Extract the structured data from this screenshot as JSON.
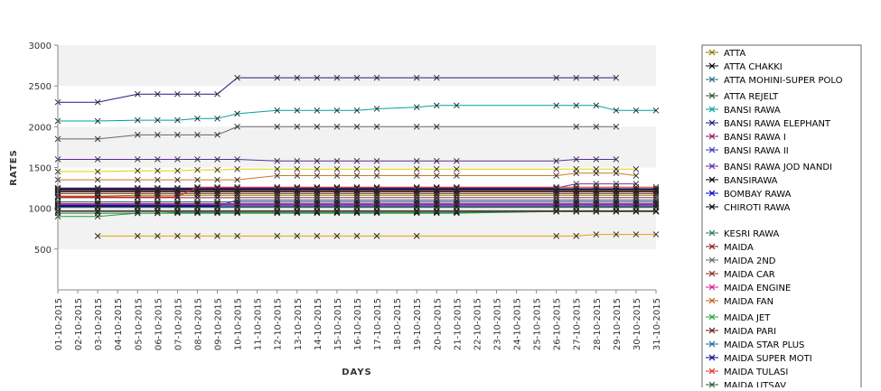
{
  "chart_data": {
    "type": "line",
    "title": "",
    "xlabel": "DAYS",
    "ylabel": "RATES",
    "ylim": [
      0,
      3000
    ],
    "y_ticks": [
      500,
      1000,
      1500,
      2000,
      2500,
      3000
    ],
    "grid": "alternating horizontal bands",
    "legend_position": "right",
    "categories": [
      "01-10-2015",
      "02-10-2015",
      "03-10-2015",
      "04-10-2015",
      "05-10-2015",
      "06-10-2015",
      "07-10-2015",
      "08-10-2015",
      "09-10-2015",
      "10-10-2015",
      "11-10-2015",
      "12-10-2015",
      "13-10-2015",
      "14-10-2015",
      "15-10-2015",
      "16-10-2015",
      "17-10-2015",
      "18-10-2015",
      "19-10-2015",
      "20-10-2015",
      "21-10-2015",
      "22-10-2015",
      "23-10-2015",
      "24-10-2015",
      "25-10-2015",
      "26-10-2015",
      "27-10-2015",
      "28-10-2015",
      "29-10-2015",
      "30-10-2015",
      "31-10-2015"
    ],
    "series": [
      {
        "name": "ATTA",
        "color": "#8a7a00",
        "values": [
          1150,
          null,
          1150,
          null,
          1160,
          1160,
          1160,
          1160,
          1160,
          1160,
          null,
          1160,
          1160,
          1160,
          1160,
          1160,
          1160,
          null,
          1160,
          1160,
          1160,
          null,
          null,
          null,
          null,
          1160,
          1160,
          1160,
          1160,
          1160,
          1160
        ]
      },
      {
        "name": "ATTA CHAKKI",
        "color": "#000000",
        "values": [
          1240,
          null,
          1240,
          null,
          1240,
          1240,
          1240,
          1240,
          1240,
          1240,
          null,
          1240,
          1240,
          1240,
          1240,
          1240,
          1240,
          null,
          1240,
          1240,
          1240,
          null,
          null,
          null,
          null,
          1240,
          1240,
          1240,
          1240,
          1240,
          1240
        ]
      },
      {
        "name": "ATTA MOHINI-SUPER POLO",
        "color": "#1f6f8b",
        "values": [
          1080,
          null,
          1080,
          null,
          1080,
          1080,
          1080,
          1080,
          1080,
          1080,
          null,
          1080,
          1080,
          1080,
          1080,
          1080,
          1080,
          null,
          1080,
          1080,
          1080,
          null,
          null,
          null,
          null,
          1080,
          1080,
          1080,
          1080,
          1080,
          1080
        ]
      },
      {
        "name": "ATTA REJELT",
        "color": "#2f4f2f",
        "values": [
          1200,
          null,
          1200,
          null,
          1200,
          1200,
          1200,
          1200,
          1200,
          1200,
          null,
          1200,
          1200,
          1200,
          1200,
          1200,
          1200,
          null,
          1200,
          1200,
          1200,
          null,
          null,
          null,
          null,
          1200,
          1200,
          1200,
          1200,
          1200,
          1200
        ]
      },
      {
        "name": "BANSI RAWA",
        "color": "#00a0a0",
        "values": [
          2070,
          null,
          2070,
          null,
          2080,
          2080,
          2080,
          2100,
          2100,
          2160,
          null,
          2200,
          2200,
          2200,
          2200,
          2200,
          2220,
          null,
          2240,
          2260,
          2260,
          null,
          null,
          null,
          null,
          2260,
          2260,
          2260,
          2200,
          2200,
          2200
        ]
      },
      {
        "name": "BANSI RAWA ELEPHANT",
        "color": "#1a1a8a",
        "values": [
          2300,
          null,
          2300,
          null,
          2400,
          2400,
          2400,
          2400,
          2400,
          2600,
          null,
          2600,
          2600,
          2600,
          2600,
          2600,
          2600,
          null,
          2600,
          2600,
          null,
          null,
          null,
          null,
          null,
          2600,
          2600,
          2600,
          2600,
          null,
          null
        ]
      },
      {
        "name": "BANSI RAWA I",
        "color": "#8b1a5a",
        "values": [
          1060,
          null,
          1060,
          null,
          1060,
          1060,
          1060,
          1060,
          1060,
          1060,
          null,
          1060,
          1060,
          1060,
          1060,
          1060,
          1060,
          null,
          1060,
          1060,
          1060,
          null,
          null,
          null,
          null,
          1060,
          1060,
          1060,
          1060,
          1060,
          1060
        ]
      },
      {
        "name": "BANSI RAWA II",
        "color": "#3a3ab0",
        "values": [
          1030,
          null,
          1030,
          null,
          1030,
          1030,
          1030,
          1030,
          1030,
          1100,
          null,
          1100,
          1100,
          1100,
          1100,
          1100,
          1100,
          null,
          1100,
          1100,
          1100,
          null,
          null,
          null,
          null,
          1100,
          1100,
          1100,
          1100,
          1100,
          1100
        ]
      },
      {
        "name": "BANSI RAWA JOD NANDI",
        "color": "#5a2aa0",
        "values": [
          1600,
          null,
          1600,
          null,
          1600,
          1600,
          1600,
          1600,
          1600,
          1600,
          null,
          1580,
          1580,
          1580,
          1580,
          1580,
          1580,
          null,
          1580,
          1580,
          1580,
          null,
          null,
          null,
          null,
          1580,
          1600,
          1600,
          1600,
          null,
          null
        ]
      },
      {
        "name": "BANSIRAWA",
        "color": "#000000",
        "values": [
          1020,
          null,
          1020,
          null,
          1020,
          1020,
          1020,
          1020,
          1020,
          1020,
          null,
          1020,
          1020,
          1020,
          1020,
          1020,
          1020,
          null,
          1020,
          1020,
          1020,
          null,
          null,
          null,
          null,
          1020,
          1020,
          1020,
          1020,
          1020,
          1020
        ]
      },
      {
        "name": "BOMBAY RAWA",
        "color": "#0000c0",
        "values": [
          1040,
          null,
          1040,
          null,
          1040,
          1040,
          1040,
          1040,
          1040,
          1040,
          null,
          1040,
          1040,
          1040,
          1040,
          1040,
          1040,
          null,
          1040,
          1040,
          1040,
          null,
          null,
          null,
          null,
          1040,
          1040,
          1040,
          1040,
          1040,
          1040
        ]
      },
      {
        "name": "CHIROTI RAWA",
        "color": "#000000",
        "values": [
          1210,
          null,
          1210,
          null,
          1210,
          1210,
          1210,
          1210,
          1210,
          1210,
          null,
          1210,
          1210,
          1210,
          1210,
          1210,
          1210,
          null,
          1210,
          1210,
          1210,
          null,
          null,
          null,
          null,
          1210,
          1210,
          1210,
          1210,
          1210,
          1210
        ]
      },
      {
        "name": "KESRI RAWA",
        "color": "#2a7a5a",
        "values": [
          940,
          null,
          940,
          null,
          940,
          940,
          940,
          940,
          940,
          940,
          null,
          940,
          940,
          940,
          940,
          940,
          940,
          null,
          940,
          940,
          940,
          null,
          null,
          null,
          null,
          960,
          960,
          960,
          960,
          960,
          960
        ]
      },
      {
        "name": "MAIDA",
        "color": "#8b1a1a",
        "values": [
          1130,
          null,
          1130,
          null,
          1130,
          1130,
          1130,
          1130,
          1130,
          1130,
          null,
          1130,
          1130,
          1130,
          1130,
          1130,
          1130,
          null,
          1130,
          1130,
          1130,
          null,
          null,
          null,
          null,
          1130,
          1130,
          1130,
          1130,
          1130,
          1130
        ]
      },
      {
        "name": "MAIDA 2ND",
        "color": "#666666",
        "values": [
          1850,
          null,
          1850,
          null,
          1900,
          1900,
          1900,
          1900,
          1900,
          2000,
          null,
          2000,
          2000,
          2000,
          2000,
          2000,
          2000,
          null,
          2000,
          2000,
          null,
          null,
          null,
          null,
          null,
          null,
          2000,
          2000,
          2000,
          null,
          null
        ]
      },
      {
        "name": "MAIDA CAR",
        "color": "#8b2a2a",
        "values": [
          1180,
          null,
          1180,
          null,
          1180,
          1180,
          1180,
          1180,
          1180,
          1180,
          null,
          1180,
          1180,
          1180,
          1180,
          1180,
          1180,
          null,
          1180,
          1180,
          1180,
          null,
          null,
          null,
          null,
          1180,
          1180,
          1180,
          1180,
          1180,
          1180
        ]
      },
      {
        "name": "MAIDA ENGINE",
        "color": "#d0208a",
        "values": [
          1050,
          null,
          1050,
          null,
          1050,
          1050,
          1050,
          1050,
          1050,
          1050,
          null,
          1050,
          1050,
          1050,
          1050,
          1050,
          1050,
          null,
          1050,
          1050,
          1050,
          null,
          null,
          null,
          null,
          1050,
          1050,
          1050,
          1050,
          1050,
          1050
        ]
      },
      {
        "name": "MAIDA FAN",
        "color": "#c06020",
        "values": [
          1220,
          null,
          1220,
          null,
          1220,
          1220,
          1220,
          1220,
          1220,
          1220,
          null,
          1220,
          1220,
          1220,
          1220,
          1220,
          1220,
          null,
          1220,
          1220,
          1220,
          null,
          null,
          null,
          null,
          1220,
          1220,
          1220,
          1220,
          1220,
          1220
        ]
      },
      {
        "name": "MAIDA JET",
        "color": "#20a040",
        "values": [
          900,
          null,
          900,
          null,
          940,
          940,
          950,
          950,
          950,
          950,
          null,
          950,
          950,
          950,
          950,
          950,
          950,
          null,
          950,
          950,
          950,
          null,
          null,
          null,
          null,
          960,
          960,
          960,
          960,
          960,
          960
        ]
      },
      {
        "name": "MAIDA PARI",
        "color": "#6a1a1a",
        "values": [
          970,
          null,
          970,
          null,
          970,
          970,
          970,
          970,
          970,
          970,
          null,
          970,
          970,
          970,
          970,
          970,
          970,
          null,
          970,
          970,
          970,
          null,
          null,
          null,
          null,
          970,
          970,
          970,
          970,
          970,
          970
        ]
      },
      {
        "name": "MAIDA STAR PLUS",
        "color": "#1a6a9a",
        "values": [
          1010,
          null,
          1010,
          null,
          1010,
          1010,
          1010,
          1010,
          1010,
          1010,
          null,
          1010,
          1010,
          1010,
          1010,
          1010,
          1010,
          null,
          1010,
          1010,
          1010,
          null,
          null,
          null,
          null,
          1010,
          1010,
          1010,
          1010,
          1010,
          1010
        ]
      },
      {
        "name": "MAIDA SUPER MOTI",
        "color": "#00008b",
        "values": [
          1230,
          null,
          1230,
          null,
          1230,
          1230,
          1230,
          1230,
          1230,
          1230,
          null,
          1230,
          1230,
          1230,
          1230,
          1230,
          1230,
          null,
          1230,
          1230,
          1230,
          null,
          null,
          null,
          null,
          1230,
          1230,
          1230,
          1230,
          1230,
          1230
        ]
      },
      {
        "name": "MAIDA TULASI",
        "color": "#e03030",
        "values": [
          1140,
          null,
          1140,
          null,
          1140,
          1140,
          1140,
          1260,
          1260,
          1260,
          null,
          1260,
          1260,
          1260,
          1260,
          1260,
          1260,
          null,
          1260,
          1260,
          1260,
          null,
          null,
          null,
          null,
          1260,
          1260,
          1260,
          1260,
          1260,
          1260
        ]
      },
      {
        "name": "MAIDA UTSAV",
        "color": "#2a5a2a",
        "values": [
          960,
          null,
          960,
          null,
          960,
          960,
          960,
          960,
          960,
          960,
          null,
          960,
          960,
          960,
          960,
          960,
          960,
          null,
          960,
          960,
          960,
          null,
          null,
          null,
          null,
          960,
          960,
          960,
          960,
          960,
          960
        ]
      },
      {
        "name": "",
        "color": "#e8a000",
        "values": [
          null,
          null,
          660,
          null,
          660,
          660,
          660,
          660,
          660,
          660,
          null,
          660,
          660,
          660,
          660,
          660,
          660,
          null,
          660,
          null,
          null,
          null,
          null,
          null,
          null,
          660,
          660,
          680,
          680,
          680,
          680
        ]
      },
      {
        "name": "",
        "color": "#e0d000",
        "values": [
          1450,
          null,
          1450,
          null,
          1460,
          1460,
          1460,
          1470,
          1470,
          1480,
          null,
          1480,
          1480,
          1480,
          1480,
          1480,
          1480,
          null,
          1480,
          1480,
          1480,
          null,
          null,
          null,
          null,
          1480,
          1480,
          1480,
          1480,
          1480,
          null
        ]
      },
      {
        "name": "",
        "color": "#c8782a",
        "values": [
          1350,
          null,
          1350,
          null,
          1350,
          1350,
          1350,
          1350,
          1350,
          1350,
          null,
          1400,
          1400,
          1400,
          1400,
          1400,
          1400,
          null,
          1400,
          1400,
          1400,
          null,
          null,
          null,
          null,
          1400,
          1430,
          1430,
          1430,
          1400,
          null
        ]
      },
      {
        "name": "",
        "color": "#7a3aa0",
        "values": [
          1250,
          null,
          1250,
          null,
          1250,
          1250,
          1250,
          1250,
          1250,
          1250,
          null,
          1250,
          1250,
          1250,
          1250,
          1250,
          1250,
          null,
          1250,
          1250,
          1250,
          null,
          null,
          null,
          null,
          1250,
          1300,
          1300,
          1300,
          1300,
          null
        ]
      }
    ]
  }
}
